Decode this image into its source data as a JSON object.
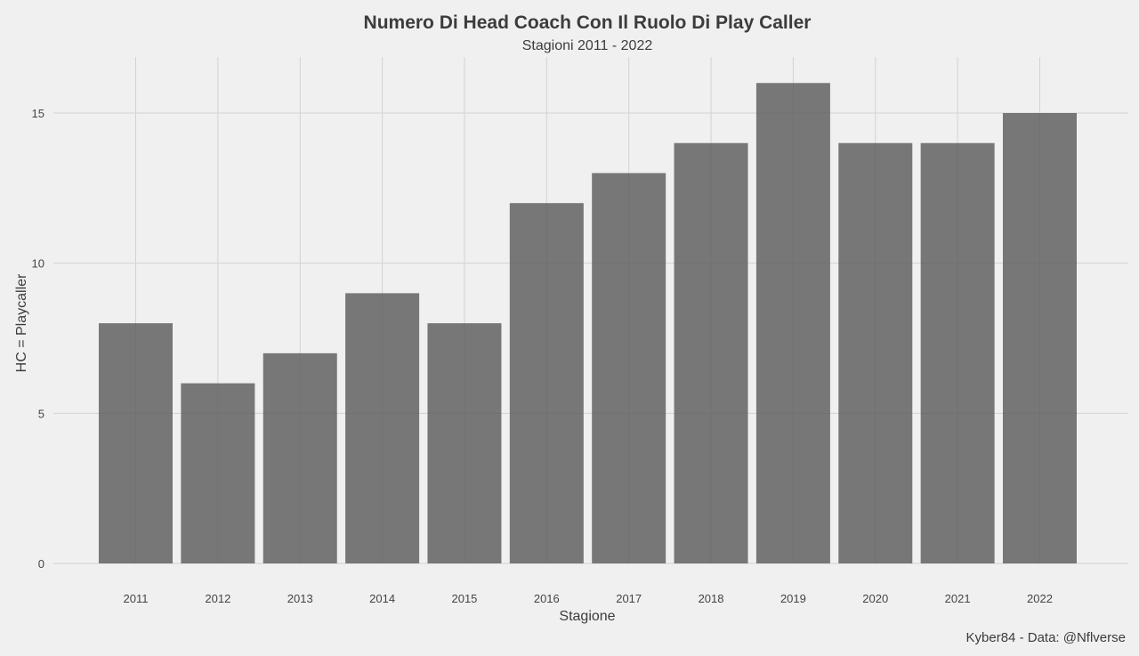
{
  "chart_data": {
    "type": "bar",
    "title": "Numero Di Head Coach Con Il Ruolo Di Play Caller",
    "subtitle": "Stagioni 2011 - 2022",
    "xlabel": "Stagione",
    "ylabel": "HC = Playcaller",
    "caption": "Kyber84 - Data: @Nflverse",
    "categories": [
      "2011",
      "2012",
      "2013",
      "2014",
      "2015",
      "2016",
      "2017",
      "2018",
      "2019",
      "2020",
      "2021",
      "2022"
    ],
    "values": [
      8,
      6,
      7,
      9,
      8,
      12,
      13,
      14,
      16,
      14,
      14,
      15
    ],
    "yticks": [
      0,
      5,
      10,
      15
    ],
    "ylim": [
      0,
      16.8
    ],
    "grid": true,
    "legend": "none",
    "colors": {
      "background": "#f0f0f0",
      "bar": "#595959",
      "grid": "#d2d2d2",
      "text": "#3c3c3c"
    }
  }
}
